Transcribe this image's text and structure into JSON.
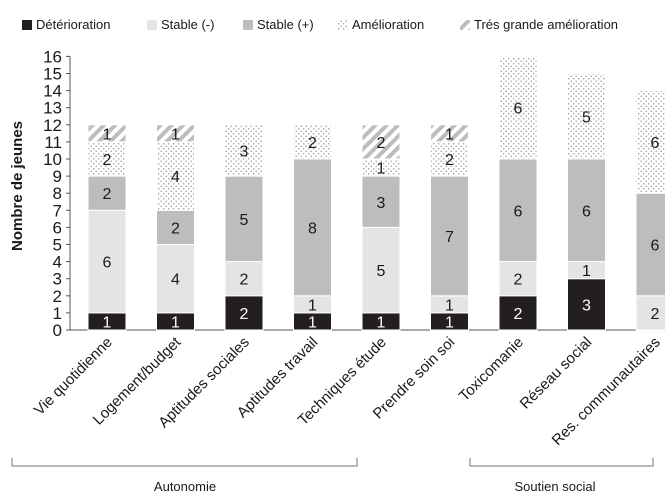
{
  "chart_data": {
    "type": "bar",
    "stacked": true,
    "ylabel": "Nombre de jeunes",
    "xlabel": "",
    "ylim": [
      0,
      16
    ],
    "yticks": [
      0,
      1,
      2,
      3,
      4,
      5,
      6,
      7,
      8,
      9,
      10,
      11,
      12,
      13,
      14,
      15,
      16
    ],
    "grid": false,
    "legend_position": "top",
    "categories": [
      "Vie quotidienne",
      "Logement/budget",
      "Aptitudes sociales",
      "Aptitudes travail",
      "Techniques étude",
      "Prendre soin soi",
      "Toxicomanie",
      "Réseau social",
      "Res. communautaires"
    ],
    "series": [
      {
        "name": "Détérioration",
        "pattern": "solid-dark",
        "color": "#231f20",
        "values": [
          1,
          1,
          2,
          1,
          1,
          1,
          2,
          3,
          0
        ]
      },
      {
        "name": "Stable (-)",
        "pattern": "solid-light",
        "color": "#e4e4e4",
        "values": [
          6,
          4,
          2,
          1,
          5,
          1,
          2,
          1,
          2
        ]
      },
      {
        "name": "Stable (+)",
        "pattern": "solid-mid",
        "color": "#bdbdbd",
        "values": [
          2,
          2,
          5,
          8,
          3,
          7,
          6,
          6,
          6
        ]
      },
      {
        "name": "Amélioration",
        "pattern": "dots",
        "color": "#cfcfcf",
        "values": [
          2,
          4,
          3,
          2,
          1,
          2,
          6,
          5,
          6
        ]
      },
      {
        "name": "Trés grande amélioration",
        "pattern": "hatch",
        "color": "#a8a8a8",
        "values": [
          1,
          1,
          0,
          0,
          2,
          1,
          0,
          0,
          0
        ]
      }
    ],
    "groups": [
      {
        "label": "Autonomie",
        "from": 0,
        "to": 5
      },
      {
        "label": "Soutien social",
        "from": 6,
        "to": 8
      }
    ]
  }
}
